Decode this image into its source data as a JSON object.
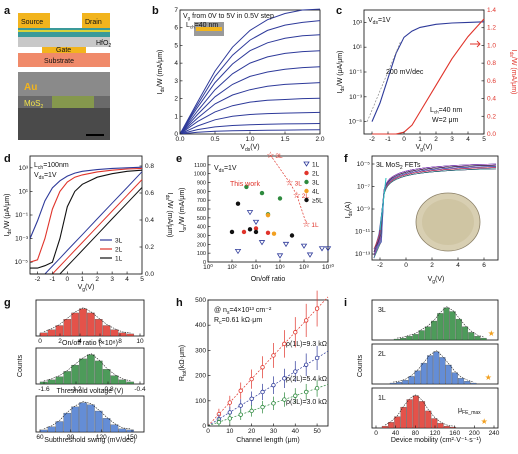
{
  "panels": {
    "a": {
      "letter": "a",
      "source": "Source",
      "drain": "Drain",
      "hfo2": "HfO",
      "hfo2_sub": "2",
      "gate": "Gate",
      "substrate": "Substrate",
      "au": "Au",
      "mos": "MoS",
      "mos_sub": "2"
    },
    "b": {
      "letter": "b",
      "annot1": "V",
      "annot1_sub": "g",
      "annot1_rest": " from 0V to 5V in 0.5V step",
      "annot2": "L",
      "annot2_sub": "ch",
      "annot2_rest": "=40 nm",
      "ylabel": "I",
      "ylabel_sub": "ds",
      "ylabel_rest": "/W (mA/μm)",
      "xlabel": "V",
      "xlabel_sub": "ds",
      "xlabel_rest": "(V)",
      "xticks": [
        "0.0",
        "0.5",
        "1.0",
        "1.5",
        "2.0"
      ],
      "yticks": [
        "0",
        "1",
        "2",
        "3",
        "4",
        "5",
        "6",
        "7"
      ]
    },
    "c": {
      "letter": "c",
      "annot_vds": "V",
      "annot_vds_sub": "ds",
      "annot_vds_rest": "=1V",
      "ss": "200 mV/dec",
      "lch": "L",
      "lch_sub": "ch",
      "lch_rest": "=40 nm",
      "w": "W=2 μm",
      "ylabel_left": "I",
      "ylabel_left_sub": "ds",
      "ylabel_left_rest": "/W (μA/μm)",
      "ylabel_right": "I",
      "ylabel_right_sub": "ds",
      "ylabel_right_rest": "/W (mA/μm)",
      "xlabel": "V",
      "xlabel_sub": "g",
      "xlabel_rest": "(V)",
      "xticks": [
        "-2",
        "-1",
        "0",
        "1",
        "2",
        "3",
        "4",
        "5"
      ],
      "yticks_left": [
        "10⁻⁵",
        "10⁻³",
        "10⁻¹",
        "10¹",
        "10³"
      ],
      "yticks_right": [
        "0.0",
        "0.2",
        "0.4",
        "0.6",
        "0.8",
        "1.0",
        "1.2",
        "1.4"
      ]
    },
    "d": {
      "letter": "d",
      "annot_lch": "L",
      "annot_lch_sub": "ch",
      "annot_lch_rest": "=100nm",
      "annot_vds": "V",
      "annot_vds_sub": "ds",
      "annot_vds_rest": "=1V",
      "ylabel_left": "I",
      "ylabel_left_sub": "ds",
      "ylabel_left_rest": "/W (μA/μm)",
      "ylabel_right": "I",
      "ylabel_right_sub": "ds",
      "ylabel_right_rest": "/W (mA/μm)",
      "xlabel": "V",
      "xlabel_sub": "g",
      "xlabel_rest": "(V)",
      "legend": [
        "3L",
        "2L",
        "1L"
      ],
      "xticks": [
        "-2",
        "-1",
        "0",
        "1",
        "2",
        "3",
        "4",
        "5"
      ],
      "yticks_left": [
        "10⁻⁵",
        "10⁻³",
        "10⁻¹",
        "10¹",
        "10³"
      ],
      "yticks_right": [
        "0.0",
        "0.2",
        "0.4",
        "0.6",
        "0.8"
      ]
    },
    "e": {
      "letter": "e",
      "annot_vds": "V",
      "annot_vds_sub": "ds",
      "annot_vds_rest": "=1V",
      "thiswork": "This work",
      "ylabel": "I",
      "ylabel_sub": "on",
      "ylabel_rest": "/W (mA/μm)",
      "xlabel": "On/off ratio",
      "legend": [
        "1L",
        "2L",
        "3L",
        "4L",
        "≥5L"
      ],
      "stars": [
        "3L",
        "3L",
        "2L",
        "1L"
      ],
      "xticks": [
        "10⁰",
        "10²",
        "10⁴",
        "10⁶",
        "10⁸",
        "10¹⁰"
      ],
      "yticks": [
        "0",
        "100",
        "200",
        "300",
        "400",
        "500",
        "600",
        "700",
        "800",
        "900",
        "1000",
        "1100"
      ]
    },
    "f": {
      "letter": "f",
      "title": "3L MoS",
      "title_sub": "2",
      "title_rest": " FETs",
      "ylabel": "I",
      "ylabel_sub": "ds",
      "ylabel_rest": "(A)",
      "xlabel": "V",
      "xlabel_sub": "g",
      "xlabel_rest": "(V)",
      "xticks": [
        "-2",
        "0",
        "2",
        "4",
        "6"
      ],
      "yticks": [
        "10⁻¹³",
        "10⁻¹¹",
        "10⁻⁹",
        "10⁻⁷",
        "10⁻⁵"
      ]
    },
    "g": {
      "letter": "g",
      "x1": "On/off ratio (×10⁸)",
      "x2": "Threshold voltage (V)",
      "x3": "Subthreshold swing (mV/dec)",
      "ylabel": "Counts",
      "ticks1": [
        "0",
        "2",
        "4",
        "6",
        "8",
        "10"
      ],
      "ticks2": [
        "-1.6",
        "-1.2",
        "-0.8",
        "-0.4"
      ],
      "ticks3": [
        "60",
        "90",
        "120",
        "150"
      ]
    },
    "h": {
      "letter": "h",
      "annot1": "@ n",
      "annot1_sub": "s",
      "annot1_rest": "=4×10¹³ cm⁻²",
      "annot2": "R",
      "annot2_sub": "c",
      "annot2_rest": "=0.61 kΩ·μm",
      "rho3": "ρ(1L)=9.3 kΩ",
      "rho2": "ρ(2L)=5.4 kΩ",
      "rho1": "ρ(3L)=3.0 kΩ",
      "ylabel": "R",
      "ylabel_sub": "tot",
      "ylabel_rest": "(kΩ·μm)",
      "xlabel": "Channel length (μm)",
      "xticks": [
        "0",
        "10",
        "20",
        "30",
        "40",
        "50"
      ],
      "yticks": [
        "0",
        "100",
        "200",
        "300",
        "400",
        "500"
      ]
    },
    "i": {
      "letter": "i",
      "l3": "3L",
      "l2": "2L",
      "l1": "1L",
      "mu": "μ",
      "mu_sub": "FE_max",
      "ylabel": "Counts",
      "xlabel": "Device mobility (cm²·V⁻¹·s⁻¹)",
      "xticks": [
        "0",
        "40",
        "80",
        "120",
        "160",
        "200",
        "240"
      ]
    }
  },
  "colors": {
    "blue": "#2e3a9a",
    "red": "#e0342b",
    "green": "#2e8a3e",
    "black": "#111111"
  },
  "chart_data": [
    {
      "type": "line",
      "panel": "b",
      "x": [
        0,
        0.25,
        0.5,
        0.75,
        1,
        1.25,
        1.5,
        1.75,
        2
      ],
      "series": [
        {
          "values": [
            0,
            0.1,
            0.15,
            0.18,
            0.2,
            0.21,
            0.22,
            0.23,
            0.24
          ]
        },
        {
          "values": [
            0,
            0.25,
            0.4,
            0.48,
            0.52,
            0.55,
            0.57,
            0.58,
            0.59
          ]
        },
        {
          "values": [
            0,
            0.45,
            0.8,
            1.0,
            1.1,
            1.15,
            1.18,
            1.2,
            1.22
          ]
        },
        {
          "values": [
            0,
            0.7,
            1.25,
            1.6,
            1.8,
            1.9,
            1.95,
            2.0,
            2.02
          ]
        },
        {
          "values": [
            0,
            0.9,
            1.7,
            2.2,
            2.5,
            2.7,
            2.8,
            2.85,
            2.9
          ]
        },
        {
          "values": [
            0,
            1.1,
            2.1,
            2.8,
            3.25,
            3.5,
            3.65,
            3.75,
            3.8
          ]
        },
        {
          "values": [
            0,
            1.3,
            2.5,
            3.4,
            4.0,
            4.35,
            4.55,
            4.65,
            4.7
          ]
        },
        {
          "values": [
            0,
            1.5,
            2.9,
            3.95,
            4.7,
            5.15,
            5.4,
            5.55,
            5.6
          ]
        },
        {
          "values": [
            0,
            1.65,
            3.25,
            4.45,
            5.3,
            5.85,
            6.15,
            6.3,
            6.4
          ]
        },
        {
          "values": [
            0,
            1.8,
            3.55,
            4.9,
            5.85,
            6.45,
            6.8,
            7.0,
            7.05
          ]
        }
      ],
      "xlim": [
        0,
        2
      ],
      "ylim": [
        0,
        7
      ]
    },
    {
      "type": "line",
      "panel": "c",
      "x": [
        -2,
        -1.5,
        -1,
        -0.5,
        0,
        0.5,
        1,
        2,
        3,
        4,
        5
      ],
      "series": [
        {
          "name": "log",
          "values": [
            -5,
            -3.5,
            -1.5,
            0.5,
            1.8,
            2.3,
            2.6,
            2.85,
            2.95,
            3.0,
            3.05
          ]
        },
        {
          "name": "linear",
          "values": [
            0,
            0,
            0,
            0,
            0.02,
            0.1,
            0.25,
            0.55,
            0.85,
            1.1,
            1.3
          ]
        }
      ],
      "xlim": [
        -2.5,
        5
      ],
      "ylim_log": [
        -6,
        4
      ]
    },
    {
      "type": "line",
      "panel": "d",
      "x": [
        -2.5,
        -2,
        -1.5,
        -1,
        -0.5,
        0,
        0.5,
        1,
        2,
        3,
        4,
        5
      ],
      "series": [
        {
          "name": "3L",
          "values": [
            -3,
            -1.5,
            0.2,
            1.3,
            1.9,
            2.3,
            2.55,
            2.7,
            2.85,
            2.95,
            3.0,
            3.05
          ]
        },
        {
          "name": "2L",
          "values": [
            -5,
            -4.8,
            -3,
            -0.5,
            1,
            1.8,
            2.2,
            2.4,
            2.65,
            2.8,
            2.9,
            2.95
          ]
        },
        {
          "name": "1L",
          "values": [
            -5.5,
            -5.5,
            -5.3,
            -5,
            -3,
            -0.3,
            1,
            1.6,
            2.2,
            2.5,
            2.7,
            2.8
          ]
        }
      ],
      "xlim": [
        -2.5,
        5
      ],
      "ylim_log": [
        -6,
        4
      ]
    },
    {
      "type": "scatter",
      "panel": "e",
      "series": [
        {
          "name": "1L",
          "points": [
            [
              4,
              450
            ],
            [
              3.5,
              560
            ],
            [
              6.5,
              200
            ],
            [
              8,
              180
            ],
            [
              9.5,
              150
            ],
            [
              10,
              150
            ],
            [
              4.5,
              220
            ],
            [
              2.5,
              120
            ],
            [
              6,
              70
            ],
            [
              8.5,
              80
            ]
          ]
        },
        {
          "name": "2L",
          "points": [
            [
              4,
              380
            ],
            [
              5,
              330
            ],
            [
              3,
              340
            ]
          ]
        },
        {
          "name": "3L",
          "points": [
            [
              3.2,
              850
            ],
            [
              4.5,
              780
            ],
            [
              5,
              540
            ],
            [
              6,
              720
            ]
          ]
        },
        {
          "name": "4L",
          "points": [
            [
              5,
              530
            ],
            [
              5.5,
              320
            ]
          ]
        },
        {
          "name": "≥5L",
          "points": [
            [
              2.5,
              660
            ],
            [
              2,
              340
            ],
            [
              7,
              300
            ],
            [
              4,
              340
            ],
            [
              3.5,
              370
            ]
          ]
        },
        {
          "name": "This work",
          "points": [
            [
              5.2,
              1210
            ],
            [
              6.8,
              900
            ],
            [
              7.4,
              760
            ],
            [
              8.2,
              430
            ]
          ]
        }
      ],
      "xlim": [
        0,
        10
      ],
      "ylim": [
        0,
        1200
      ]
    },
    {
      "type": "line",
      "panel": "h",
      "x": [
        5,
        10,
        15,
        20,
        25,
        30,
        35,
        40,
        45,
        50
      ],
      "series": [
        {
          "name": "ρ(1L)=9.3 kΩ",
          "values": [
            47,
            93,
            140,
            186,
            233,
            280,
            326,
            372,
            419,
            466
          ]
        },
        {
          "name": "ρ(2L)=5.4 kΩ",
          "values": [
            27,
            54,
            81,
            108,
            135,
            162,
            189,
            216,
            243,
            270
          ]
        },
        {
          "name": "ρ(3L)=3.0 kΩ",
          "values": [
            15,
            30,
            45,
            60,
            75,
            90,
            105,
            120,
            135,
            150
          ]
        }
      ],
      "xlim": [
        0,
        55
      ],
      "ylim": [
        0,
        500
      ]
    }
  ]
}
